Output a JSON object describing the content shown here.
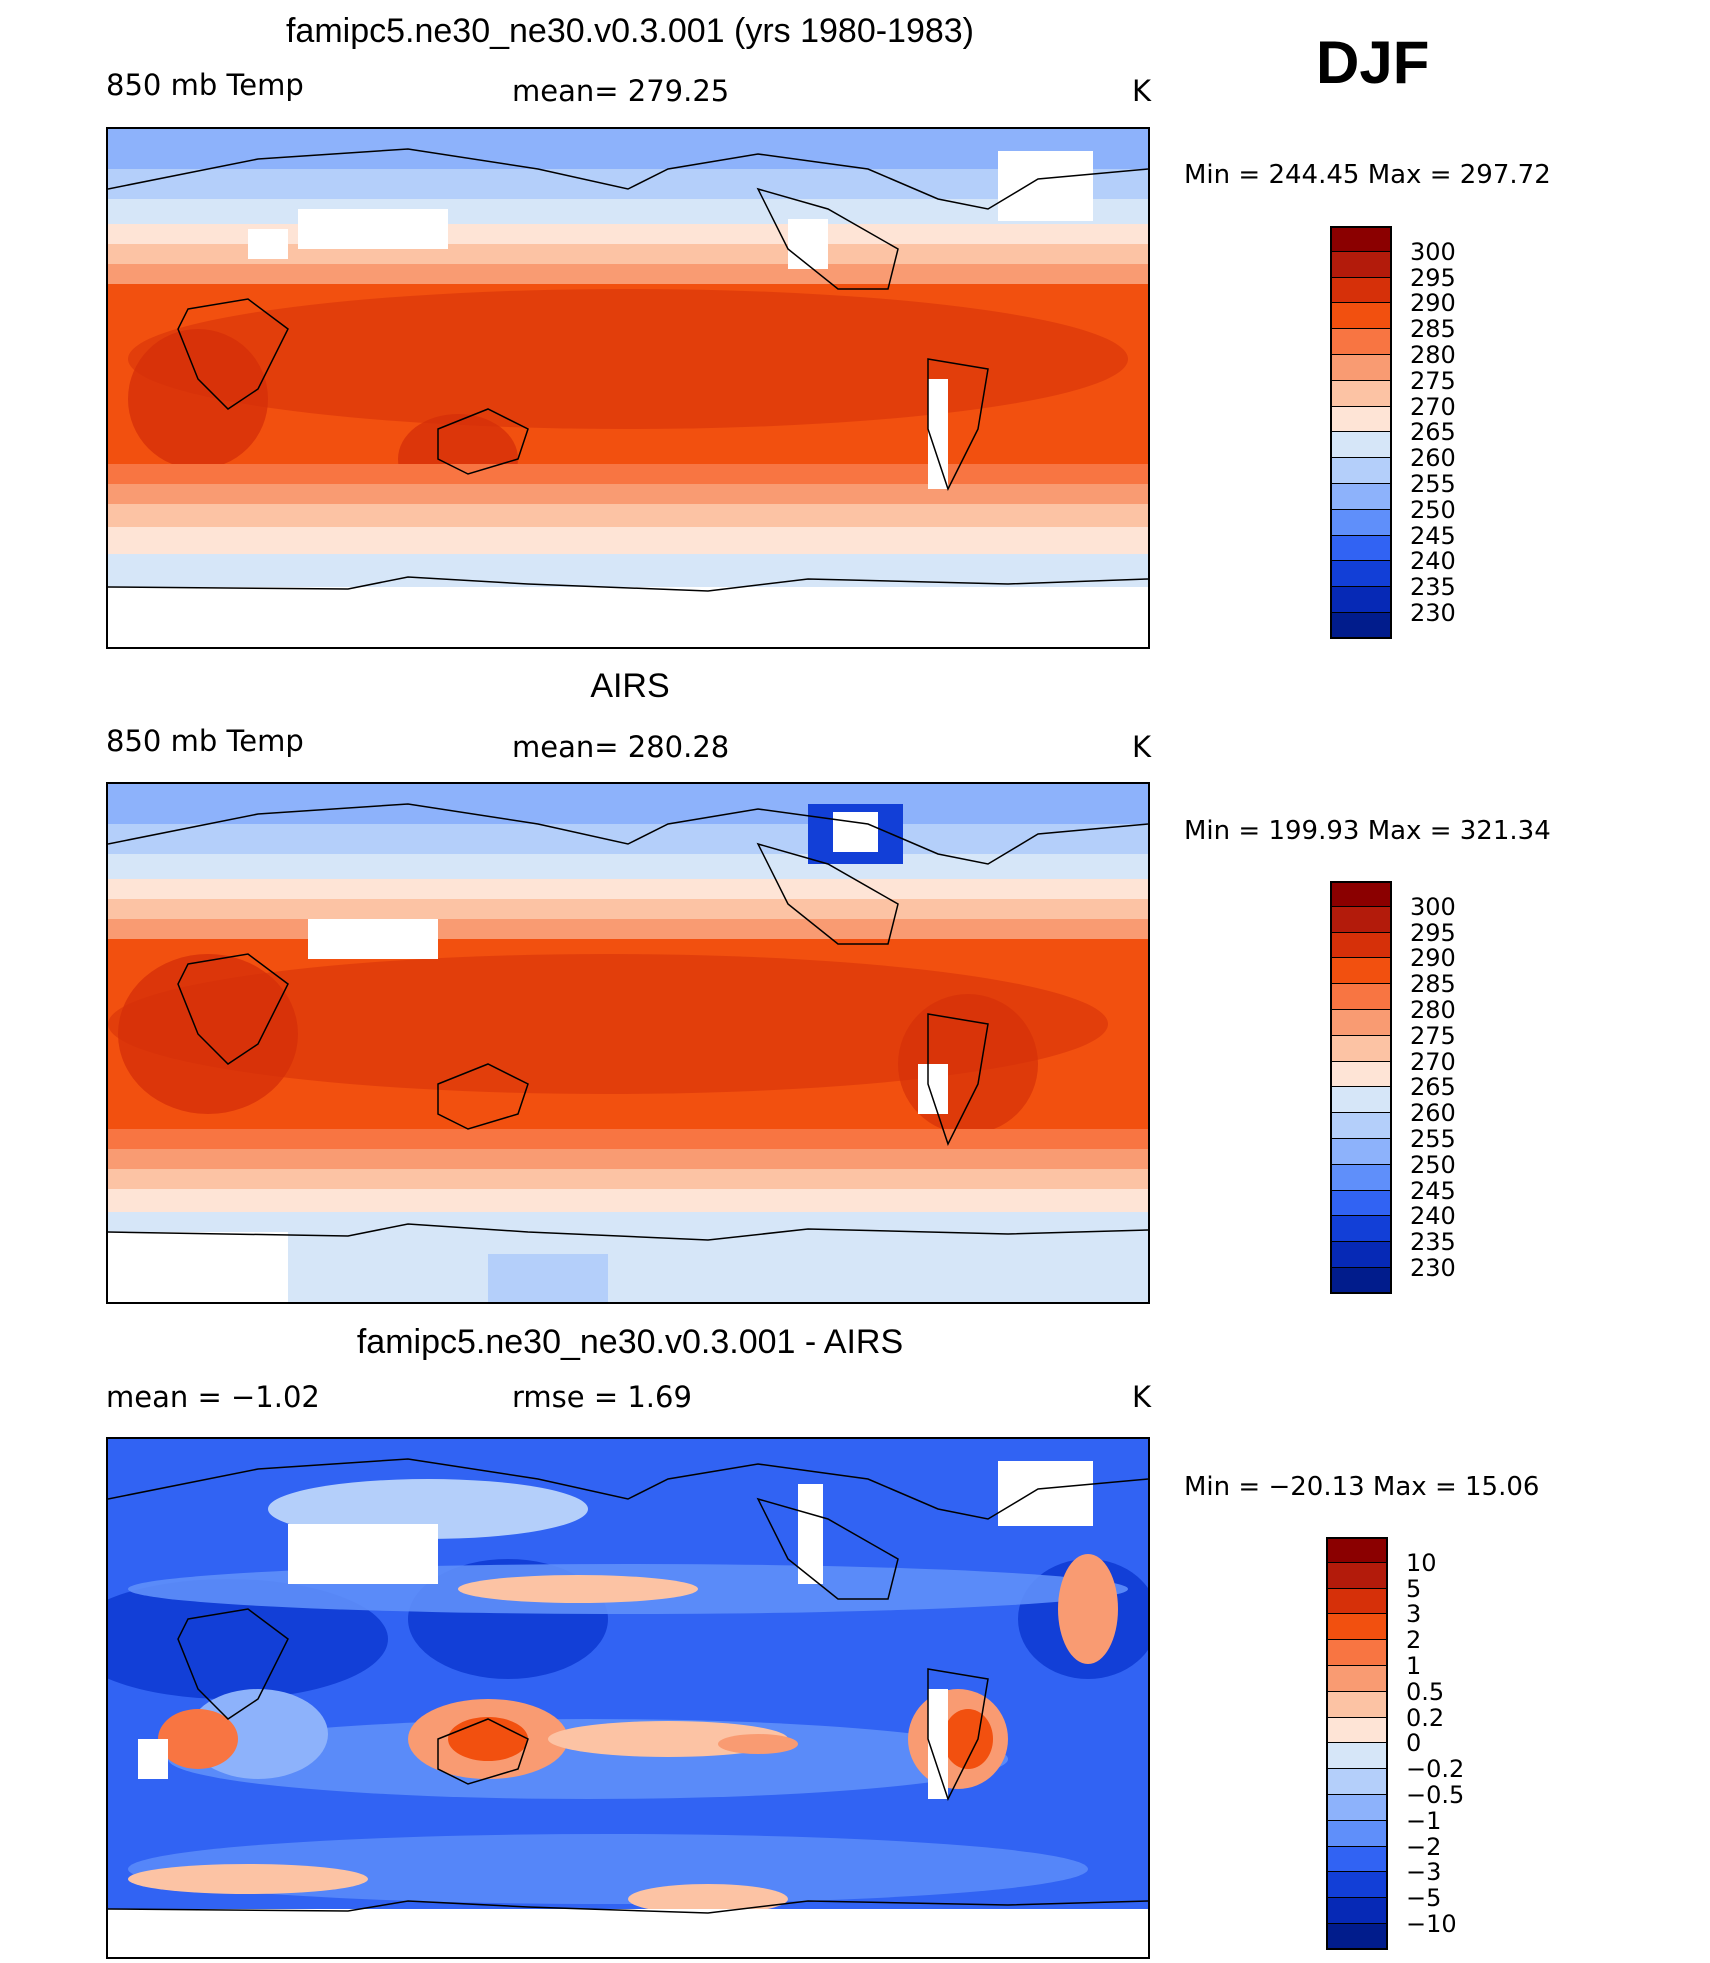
{
  "season": "DJF",
  "panels": [
    {
      "id": "model",
      "title": "famipc5.ne30_ne30.v0.3.001 (yrs 1980-1983)",
      "left_label": "850 mb Temp",
      "center_label": "mean= 279.25",
      "units": "K",
      "minmax": "Min = 244.45 Max = 297.72",
      "colorbar": {
        "levels": [
          "300",
          "295",
          "290",
          "285",
          "280",
          "275",
          "270",
          "265",
          "260",
          "255",
          "250",
          "245",
          "240",
          "235",
          "230"
        ],
        "colors": [
          "#8b0000",
          "#b31b0b",
          "#d63009",
          "#f2500f",
          "#f87542",
          "#f99b72",
          "#fcc3a4",
          "#fee4d6",
          "#d6e6f8",
          "#b4cffa",
          "#8db2fb",
          "#5f8ffa",
          "#3163f3",
          "#123fd7",
          "#0629b6",
          "#011c8c"
        ]
      }
    },
    {
      "id": "obs",
      "title": "AIRS",
      "left_label": "850 mb Temp",
      "center_label": "mean= 280.28",
      "units": "K",
      "minmax": "Min = 199.93 Max = 321.34",
      "colorbar": {
        "levels": [
          "300",
          "295",
          "290",
          "285",
          "280",
          "275",
          "270",
          "265",
          "260",
          "255",
          "250",
          "245",
          "240",
          "235",
          "230"
        ],
        "colors": [
          "#8b0000",
          "#b31b0b",
          "#d63009",
          "#f2500f",
          "#f87542",
          "#f99b72",
          "#fcc3a4",
          "#fee4d6",
          "#d6e6f8",
          "#b4cffa",
          "#8db2fb",
          "#5f8ffa",
          "#3163f3",
          "#123fd7",
          "#0629b6",
          "#011c8c"
        ]
      }
    },
    {
      "id": "diff",
      "title": "famipc5.ne30_ne30.v0.3.001 - AIRS",
      "left_label": "mean =   −1.02",
      "center_label": "rmse =    1.69",
      "units": "K",
      "minmax": "Min = −20.13 Max =   15.06",
      "colorbar": {
        "levels": [
          "10",
          "5",
          "3",
          "2",
          "1",
          "0.5",
          "0.2",
          "0",
          "−0.2",
          "−0.5",
          "−1",
          "−2",
          "−3",
          "−5",
          "−10"
        ],
        "colors": [
          "#8b0000",
          "#b31b0b",
          "#d63009",
          "#f2500f",
          "#f87542",
          "#f99b72",
          "#fcc3a4",
          "#fee4d6",
          "#d6e6f8",
          "#b4cffa",
          "#8db2fb",
          "#5f8ffa",
          "#3163f3",
          "#123fd7",
          "#0629b6",
          "#011c8c"
        ]
      }
    }
  ],
  "colors": {
    "warm_deep": "#c92d10",
    "warm": "#f2500f",
    "warm_mid": "#f87542",
    "warm_light": "#f99b72",
    "warm_pale": "#fcc3a4",
    "neutral": "#fee4d6",
    "cool_pale": "#d6e6f8",
    "cool_light": "#b4cffa",
    "cool": "#8db2fb",
    "cool_mid": "#5f8ffa",
    "cool_deep": "#3163f3",
    "cool_darker": "#123fd7"
  }
}
